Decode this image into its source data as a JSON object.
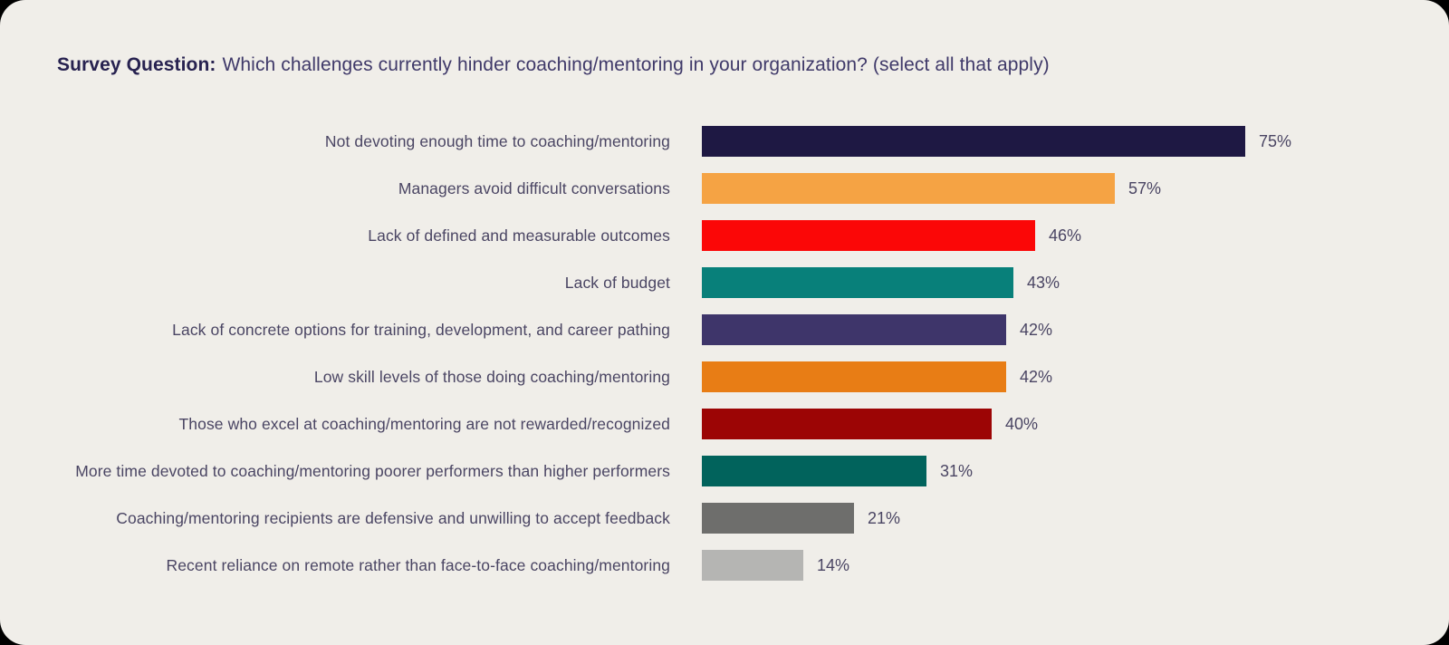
{
  "page": {
    "card_background": "#F0EEE9",
    "outer_background": "#000000"
  },
  "header": {
    "title_prefix": "Survey Question:",
    "title_text": "Which challenges currently hinder coaching/mentoring in your organization? (select all that apply)"
  },
  "chart_data": {
    "type": "bar",
    "orientation": "horizontal",
    "title": "Which challenges currently hinder coaching/mentoring in your organization? (select all that apply)",
    "xlabel": "",
    "ylabel": "",
    "xlim": [
      0,
      80
    ],
    "grid": false,
    "legend": false,
    "value_label_position": "right-of-bar",
    "categories": [
      "Not devoting enough time to coaching/mentoring",
      "Managers avoid difficult conversations",
      "Lack of defined and measurable outcomes",
      "Lack of budget",
      "Lack of concrete options for training, development, and career pathing",
      "Low skill levels of those doing coaching/mentoring",
      "Those who excel at coaching/mentoring are not rewarded/recognized",
      "More time devoted to coaching/mentoring poorer performers than higher performers",
      "Coaching/mentoring recipients are defensive and unwilling to accept feedback",
      "Recent reliance on remote rather than face-to-face coaching/mentoring"
    ],
    "values": [
      75,
      57,
      46,
      43,
      42,
      42,
      40,
      31,
      21,
      14
    ],
    "value_labels": [
      "75%",
      "57%",
      "46%",
      "43%",
      "42%",
      "42%",
      "40%",
      "31%",
      "21%",
      "14%"
    ],
    "bar_colors": [
      "#1E1843",
      "#F5A344",
      "#FB0707",
      "#08807A",
      "#3E356A",
      "#E87D15",
      "#9C0505",
      "#01635C",
      "#6E6E6C",
      "#B5B5B3"
    ],
    "label_color": "#4A4563",
    "value_color": "#4A4563"
  }
}
